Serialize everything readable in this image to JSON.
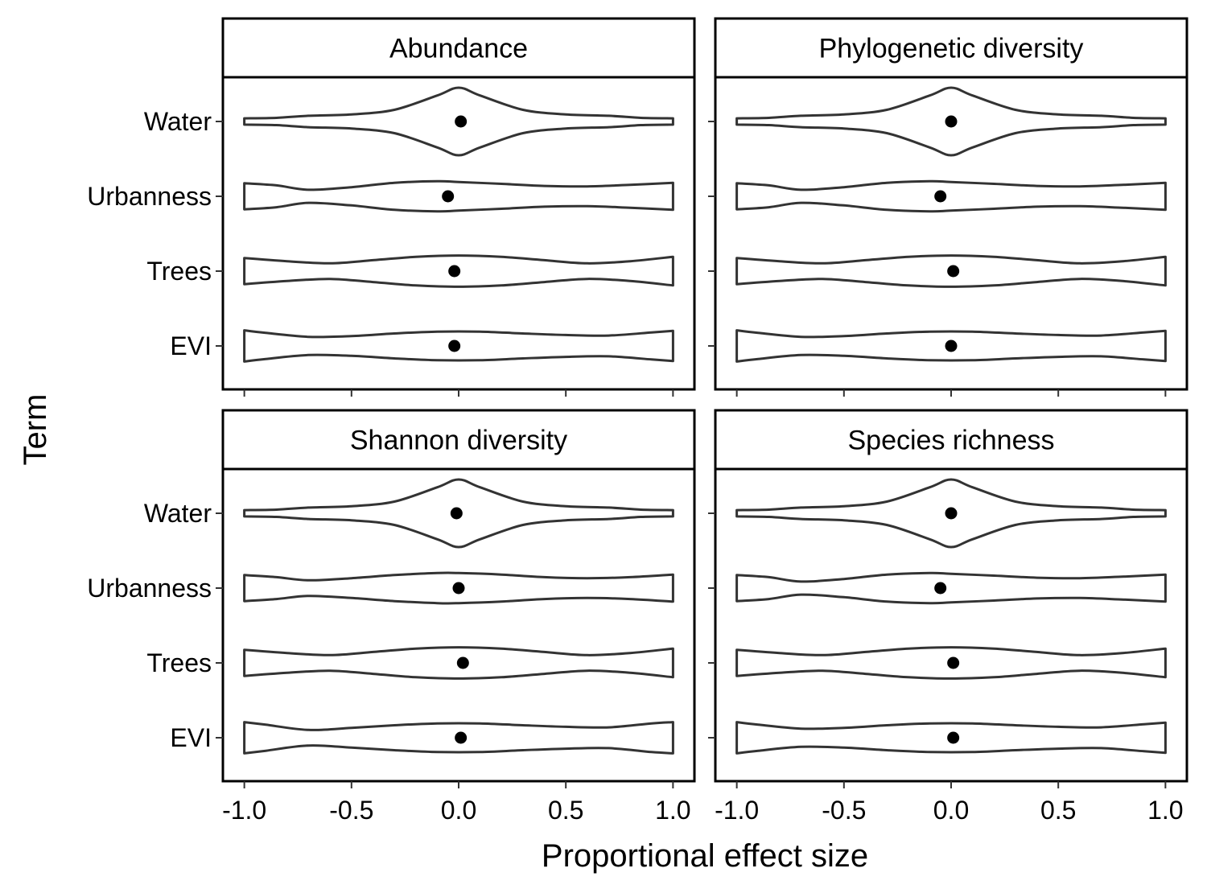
{
  "chart_data": {
    "type": "violin",
    "xlabel": "Proportional effect size",
    "ylabel": "Term",
    "xlim": [
      -1.1,
      1.1
    ],
    "x_ticks": [
      -1.0,
      -0.5,
      0.0,
      0.5,
      1.0
    ],
    "x_tick_labels": [
      "-1.0",
      "-0.5",
      "0.0",
      "0.5",
      "1.0"
    ],
    "categories": [
      "Water",
      "Urbanness",
      "Trees",
      "EVI"
    ],
    "facets": [
      {
        "title": "Abundance",
        "series": [
          {
            "term": "Water",
            "point": 0.01,
            "density": [
              [
                -1.0,
                0.12
              ],
              [
                -0.85,
                0.14
              ],
              [
                -0.7,
                0.22
              ],
              [
                -0.5,
                0.27
              ],
              [
                -0.3,
                0.45
              ],
              [
                -0.1,
                1.0
              ],
              [
                0.0,
                1.3
              ],
              [
                0.1,
                1.0
              ],
              [
                0.3,
                0.45
              ],
              [
                0.5,
                0.27
              ],
              [
                0.7,
                0.22
              ],
              [
                0.85,
                0.14
              ],
              [
                1.0,
                0.12
              ]
            ]
          },
          {
            "term": "Urbanness",
            "point": -0.05,
            "density": [
              [
                -1.0,
                0.5
              ],
              [
                -0.85,
                0.42
              ],
              [
                -0.7,
                0.25
              ],
              [
                -0.5,
                0.35
              ],
              [
                -0.3,
                0.52
              ],
              [
                -0.1,
                0.58
              ],
              [
                0.0,
                0.55
              ],
              [
                0.2,
                0.48
              ],
              [
                0.4,
                0.4
              ],
              [
                0.6,
                0.38
              ],
              [
                0.8,
                0.44
              ],
              [
                1.0,
                0.52
              ]
            ]
          },
          {
            "term": "Trees",
            "point": -0.02,
            "density": [
              [
                -1.0,
                0.5
              ],
              [
                -0.8,
                0.38
              ],
              [
                -0.6,
                0.3
              ],
              [
                -0.4,
                0.42
              ],
              [
                -0.2,
                0.55
              ],
              [
                0.0,
                0.6
              ],
              [
                0.2,
                0.55
              ],
              [
                0.4,
                0.42
              ],
              [
                0.6,
                0.3
              ],
              [
                0.8,
                0.38
              ],
              [
                1.0,
                0.55
              ]
            ]
          },
          {
            "term": "EVI",
            "point": -0.02,
            "density": [
              [
                -1.0,
                0.6
              ],
              [
                -0.9,
                0.5
              ],
              [
                -0.7,
                0.35
              ],
              [
                -0.5,
                0.38
              ],
              [
                -0.3,
                0.48
              ],
              [
                -0.1,
                0.55
              ],
              [
                0.1,
                0.55
              ],
              [
                0.3,
                0.48
              ],
              [
                0.5,
                0.42
              ],
              [
                0.7,
                0.4
              ],
              [
                0.9,
                0.52
              ],
              [
                1.0,
                0.58
              ]
            ]
          }
        ]
      },
      {
        "title": "Phylogenetic diversity",
        "series": [
          {
            "term": "Water",
            "point": 0.0,
            "density": [
              [
                -1.0,
                0.12
              ],
              [
                -0.85,
                0.14
              ],
              [
                -0.7,
                0.22
              ],
              [
                -0.5,
                0.27
              ],
              [
                -0.3,
                0.45
              ],
              [
                -0.1,
                1.0
              ],
              [
                0.0,
                1.3
              ],
              [
                0.1,
                1.0
              ],
              [
                0.3,
                0.45
              ],
              [
                0.5,
                0.27
              ],
              [
                0.7,
                0.22
              ],
              [
                0.85,
                0.14
              ],
              [
                1.0,
                0.12
              ]
            ]
          },
          {
            "term": "Urbanness",
            "point": -0.05,
            "density": [
              [
                -1.0,
                0.5
              ],
              [
                -0.85,
                0.42
              ],
              [
                -0.7,
                0.25
              ],
              [
                -0.5,
                0.35
              ],
              [
                -0.3,
                0.52
              ],
              [
                -0.1,
                0.58
              ],
              [
                0.0,
                0.55
              ],
              [
                0.2,
                0.48
              ],
              [
                0.4,
                0.4
              ],
              [
                0.6,
                0.38
              ],
              [
                0.8,
                0.44
              ],
              [
                1.0,
                0.52
              ]
            ]
          },
          {
            "term": "Trees",
            "point": 0.01,
            "density": [
              [
                -1.0,
                0.5
              ],
              [
                -0.8,
                0.38
              ],
              [
                -0.6,
                0.3
              ],
              [
                -0.4,
                0.42
              ],
              [
                -0.2,
                0.55
              ],
              [
                0.0,
                0.6
              ],
              [
                0.2,
                0.55
              ],
              [
                0.4,
                0.42
              ],
              [
                0.6,
                0.3
              ],
              [
                0.8,
                0.38
              ],
              [
                1.0,
                0.55
              ]
            ]
          },
          {
            "term": "EVI",
            "point": 0.0,
            "density": [
              [
                -1.0,
                0.6
              ],
              [
                -0.9,
                0.5
              ],
              [
                -0.7,
                0.35
              ],
              [
                -0.5,
                0.38
              ],
              [
                -0.3,
                0.48
              ],
              [
                -0.1,
                0.55
              ],
              [
                0.1,
                0.55
              ],
              [
                0.3,
                0.48
              ],
              [
                0.5,
                0.42
              ],
              [
                0.7,
                0.4
              ],
              [
                0.9,
                0.52
              ],
              [
                1.0,
                0.58
              ]
            ]
          }
        ]
      },
      {
        "title": "Shannon diversity",
        "series": [
          {
            "term": "Water",
            "point": -0.01,
            "density": [
              [
                -1.0,
                0.12
              ],
              [
                -0.85,
                0.14
              ],
              [
                -0.7,
                0.22
              ],
              [
                -0.5,
                0.27
              ],
              [
                -0.3,
                0.45
              ],
              [
                -0.1,
                1.0
              ],
              [
                0.0,
                1.3
              ],
              [
                0.1,
                1.0
              ],
              [
                0.3,
                0.45
              ],
              [
                0.5,
                0.27
              ],
              [
                0.7,
                0.22
              ],
              [
                0.85,
                0.14
              ],
              [
                1.0,
                0.12
              ]
            ]
          },
          {
            "term": "Urbanness",
            "point": 0.0,
            "density": [
              [
                -1.0,
                0.5
              ],
              [
                -0.85,
                0.42
              ],
              [
                -0.7,
                0.3
              ],
              [
                -0.5,
                0.38
              ],
              [
                -0.3,
                0.5
              ],
              [
                -0.1,
                0.58
              ],
              [
                0.0,
                0.58
              ],
              [
                0.2,
                0.52
              ],
              [
                0.4,
                0.42
              ],
              [
                0.6,
                0.38
              ],
              [
                0.8,
                0.42
              ],
              [
                1.0,
                0.52
              ]
            ]
          },
          {
            "term": "Trees",
            "point": 0.02,
            "density": [
              [
                -1.0,
                0.5
              ],
              [
                -0.8,
                0.38
              ],
              [
                -0.6,
                0.3
              ],
              [
                -0.4,
                0.42
              ],
              [
                -0.2,
                0.55
              ],
              [
                0.0,
                0.6
              ],
              [
                0.2,
                0.55
              ],
              [
                0.4,
                0.42
              ],
              [
                0.6,
                0.3
              ],
              [
                0.8,
                0.38
              ],
              [
                1.0,
                0.55
              ]
            ]
          },
          {
            "term": "EVI",
            "point": 0.01,
            "density": [
              [
                -1.0,
                0.6
              ],
              [
                -0.9,
                0.5
              ],
              [
                -0.7,
                0.3
              ],
              [
                -0.5,
                0.38
              ],
              [
                -0.3,
                0.48
              ],
              [
                -0.1,
                0.55
              ],
              [
                0.1,
                0.55
              ],
              [
                0.3,
                0.48
              ],
              [
                0.5,
                0.42
              ],
              [
                0.7,
                0.4
              ],
              [
                0.9,
                0.55
              ],
              [
                1.0,
                0.6
              ]
            ]
          }
        ]
      },
      {
        "title": "Species richness",
        "series": [
          {
            "term": "Water",
            "point": 0.0,
            "density": [
              [
                -1.0,
                0.12
              ],
              [
                -0.85,
                0.14
              ],
              [
                -0.7,
                0.22
              ],
              [
                -0.5,
                0.27
              ],
              [
                -0.3,
                0.45
              ],
              [
                -0.1,
                1.0
              ],
              [
                0.0,
                1.3
              ],
              [
                0.1,
                1.0
              ],
              [
                0.3,
                0.45
              ],
              [
                0.5,
                0.27
              ],
              [
                0.7,
                0.22
              ],
              [
                0.85,
                0.14
              ],
              [
                1.0,
                0.12
              ]
            ]
          },
          {
            "term": "Urbanness",
            "point": -0.05,
            "density": [
              [
                -1.0,
                0.5
              ],
              [
                -0.85,
                0.42
              ],
              [
                -0.7,
                0.25
              ],
              [
                -0.5,
                0.35
              ],
              [
                -0.3,
                0.52
              ],
              [
                -0.1,
                0.58
              ],
              [
                0.0,
                0.55
              ],
              [
                0.2,
                0.48
              ],
              [
                0.4,
                0.4
              ],
              [
                0.6,
                0.38
              ],
              [
                0.8,
                0.44
              ],
              [
                1.0,
                0.52
              ]
            ]
          },
          {
            "term": "Trees",
            "point": 0.01,
            "density": [
              [
                -1.0,
                0.5
              ],
              [
                -0.8,
                0.38
              ],
              [
                -0.6,
                0.3
              ],
              [
                -0.4,
                0.42
              ],
              [
                -0.2,
                0.55
              ],
              [
                0.0,
                0.6
              ],
              [
                0.2,
                0.55
              ],
              [
                0.4,
                0.42
              ],
              [
                0.6,
                0.3
              ],
              [
                0.8,
                0.38
              ],
              [
                1.0,
                0.55
              ]
            ]
          },
          {
            "term": "EVI",
            "point": 0.01,
            "density": [
              [
                -1.0,
                0.6
              ],
              [
                -0.9,
                0.5
              ],
              [
                -0.7,
                0.35
              ],
              [
                -0.5,
                0.38
              ],
              [
                -0.3,
                0.48
              ],
              [
                -0.1,
                0.55
              ],
              [
                0.1,
                0.55
              ],
              [
                0.3,
                0.48
              ],
              [
                0.5,
                0.42
              ],
              [
                0.7,
                0.4
              ],
              [
                0.9,
                0.52
              ],
              [
                1.0,
                0.58
              ]
            ]
          }
        ]
      }
    ],
    "colors": {
      "violin_outline": "#333333",
      "point": "#000000",
      "panel_border": "#000000",
      "strip_fill": "#ffffff"
    }
  }
}
